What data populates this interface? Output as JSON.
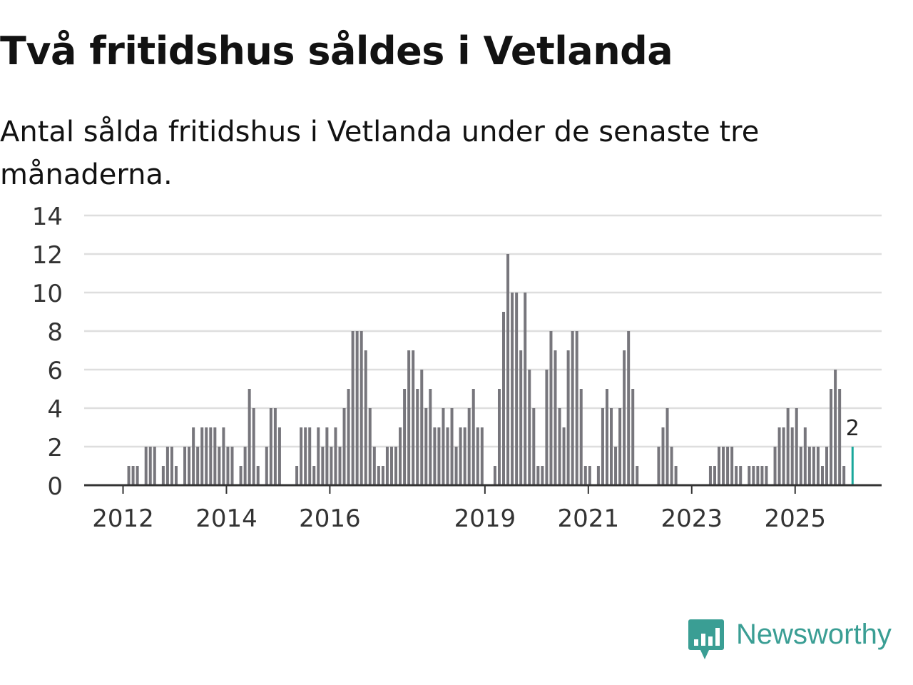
{
  "header": {
    "title": "Två fritidshus såldes i Vetlanda",
    "subtitle": "Antal sålda fritidshus i Vetlanda under de senaste tre månaderna."
  },
  "brand": {
    "name": "Newsworthy"
  },
  "colors": {
    "bar": "#77767c",
    "highlight": "#1aa79b",
    "grid": "#dedede",
    "axis": "#333333",
    "brand": "#3a9e94"
  },
  "chart_data": {
    "type": "bar",
    "title": "Två fritidshus såldes i Vetlanda",
    "xlabel": "",
    "ylabel": "",
    "ylim": [
      0,
      14
    ],
    "yticks": [
      "0",
      "2",
      "4",
      "6",
      "8",
      "10",
      "12",
      "14"
    ],
    "xticks": [
      {
        "label": "2012",
        "index": 0
      },
      {
        "label": "2014",
        "index": 24
      },
      {
        "label": "2016",
        "index": 48
      },
      {
        "label": "2019",
        "index": 84
      },
      {
        "label": "2021",
        "index": 108
      },
      {
        "label": "2023",
        "index": 132
      },
      {
        "label": "2025",
        "index": 156
      }
    ],
    "first_month": "2012-01",
    "values": [
      0,
      1,
      1,
      1,
      0,
      2,
      2,
      2,
      0,
      1,
      2,
      2,
      1,
      0,
      2,
      2,
      3,
      2,
      3,
      3,
      3,
      3,
      2,
      3,
      2,
      2,
      0,
      1,
      2,
      5,
      4,
      1,
      0,
      2,
      4,
      4,
      3,
      0,
      0,
      0,
      1,
      3,
      3,
      3,
      1,
      3,
      2,
      3,
      2,
      3,
      2,
      4,
      5,
      8,
      8,
      8,
      7,
      4,
      2,
      1,
      1,
      2,
      2,
      2,
      3,
      5,
      7,
      7,
      5,
      6,
      4,
      5,
      3,
      3,
      4,
      3,
      4,
      2,
      3,
      3,
      4,
      5,
      3,
      3,
      0,
      0,
      1,
      5,
      9,
      12,
      10,
      10,
      7,
      10,
      6,
      4,
      1,
      1,
      6,
      8,
      7,
      4,
      3,
      7,
      8,
      8,
      5,
      1,
      1,
      0,
      1,
      4,
      5,
      4,
      2,
      4,
      7,
      8,
      5,
      1,
      0,
      0,
      0,
      0,
      2,
      3,
      4,
      2,
      1,
      0,
      0,
      0,
      0,
      0,
      0,
      0,
      1,
      1,
      2,
      2,
      2,
      2,
      1,
      1,
      0,
      1,
      1,
      1,
      1,
      1,
      0,
      2,
      3,
      3,
      4,
      3,
      4,
      2,
      3,
      2,
      2,
      2,
      1,
      2,
      5,
      6,
      5,
      1,
      0,
      2
    ],
    "highlight_index": 169,
    "annotation": "2"
  }
}
